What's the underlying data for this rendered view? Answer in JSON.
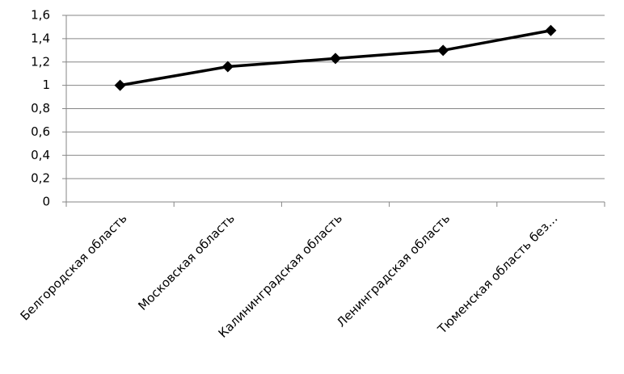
{
  "chart_data": {
    "type": "line",
    "categories": [
      "Белгородская область",
      "Московская область",
      "Калининградская область",
      "Ленинградская область",
      "Тюменская область без…"
    ],
    "series": [
      {
        "name": null,
        "color": "#000000",
        "values": [
          1.0,
          1.16,
          1.23,
          1.3,
          1.47
        ]
      }
    ],
    "ylim": [
      0,
      1.6
    ],
    "yticks": [
      0,
      {
        "value": 0.2,
        "label": "0,2"
      },
      {
        "value": 0.4,
        "label": "0,4"
      },
      {
        "value": 0.6,
        "label": "0,6"
      },
      {
        "value": 0.8,
        "label": "0,8"
      },
      1,
      {
        "value": 1.2,
        "label": "1,2"
      },
      {
        "value": 1.4,
        "label": "1,4"
      },
      {
        "value": 1.6,
        "label": "1,6"
      }
    ],
    "grid": true
  }
}
